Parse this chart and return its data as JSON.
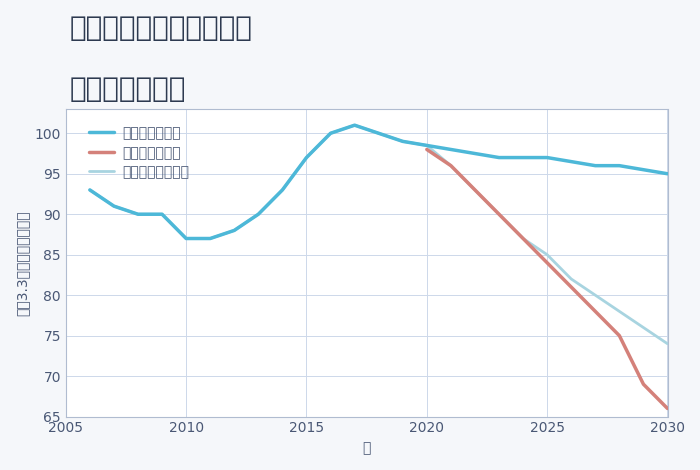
{
  "title_line1": "兵庫県西宮市今津巽町の",
  "title_line2": "土地の価格推移",
  "xlabel": "年",
  "ylabel": "坪（3.3㎡）単価（万円）",
  "background_color": "#f5f7fa",
  "plot_bg_color": "#ffffff",
  "grid_color": "#cdd8ea",
  "ylim": [
    65,
    103
  ],
  "yticks": [
    65,
    70,
    75,
    80,
    85,
    90,
    95,
    100
  ],
  "xticks": [
    2005,
    2010,
    2015,
    2020,
    2025,
    2030
  ],
  "good_scenario": {
    "x": [
      2006,
      2007,
      2008,
      2009,
      2010,
      2011,
      2012,
      2013,
      2014,
      2015,
      2016,
      2017,
      2018,
      2019,
      2020,
      2021,
      2022,
      2023,
      2024,
      2025,
      2026,
      2027,
      2028,
      2029,
      2030
    ],
    "y": [
      93,
      91,
      90,
      90,
      87,
      87,
      88,
      90,
      93,
      97,
      100,
      101,
      100,
      99,
      98.5,
      98,
      97.5,
      97,
      97,
      97,
      96.5,
      96,
      96,
      95.5,
      95
    ],
    "color": "#4db8d8",
    "linewidth": 2.5,
    "label": "グッドシナリオ"
  },
  "bad_scenario": {
    "x": [
      2020,
      2021,
      2022,
      2023,
      2024,
      2025,
      2026,
      2027,
      2028,
      2029,
      2030
    ],
    "y": [
      98,
      96,
      93,
      90,
      87,
      84,
      81,
      78,
      75,
      69,
      66
    ],
    "color": "#d4817a",
    "linewidth": 2.5,
    "label": "バッドシナリオ"
  },
  "normal_scenario": {
    "x": [
      2006,
      2007,
      2008,
      2009,
      2010,
      2011,
      2012,
      2013,
      2014,
      2015,
      2016,
      2017,
      2018,
      2019,
      2020,
      2021,
      2022,
      2023,
      2024,
      2025,
      2026,
      2027,
      2028,
      2029,
      2030
    ],
    "y": [
      93,
      91,
      90,
      90,
      87,
      87,
      88,
      90,
      93,
      97,
      100,
      101,
      100,
      99,
      98.5,
      96,
      93,
      90,
      87,
      85,
      82,
      80,
      78,
      76,
      74
    ],
    "color": "#a8d4e0",
    "linewidth": 2.0,
    "label": "ノーマルシナリオ"
  },
  "title_fontsize": 20,
  "axis_label_fontsize": 10,
  "tick_fontsize": 10,
  "legend_fontsize": 10,
  "text_color": "#4a5875",
  "spine_color": "#b0bcd0"
}
